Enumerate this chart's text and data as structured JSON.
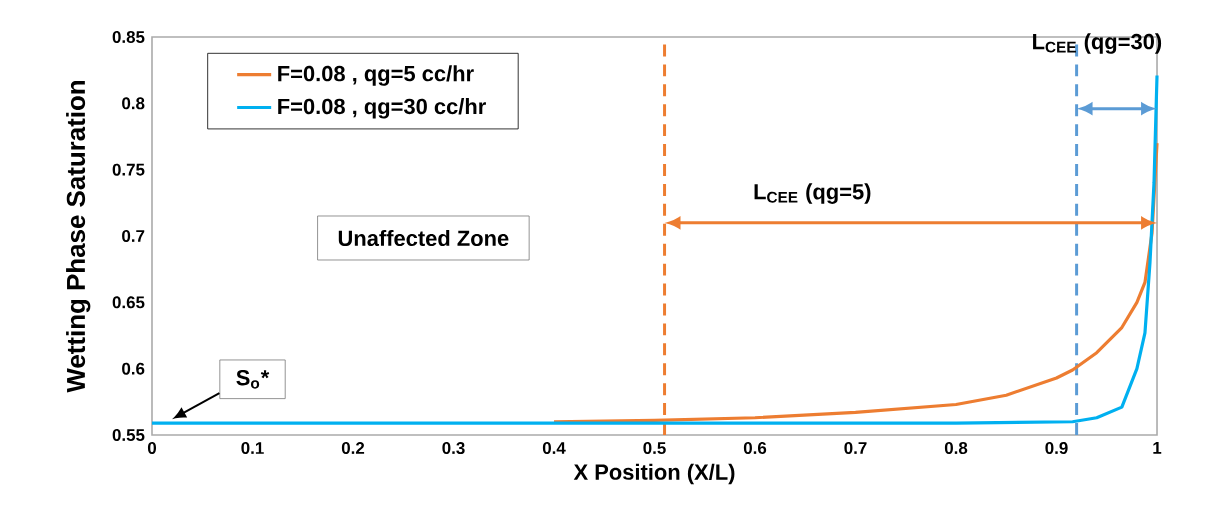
{
  "chart_data": {
    "type": "line",
    "xlabel": "X Position (X/L)",
    "ylabel": "Wetting Phase Saturation",
    "xlim": [
      0,
      1
    ],
    "ylim": [
      0.55,
      0.85
    ],
    "xticks": [
      0,
      0.1,
      0.2,
      0.3,
      0.4,
      0.5,
      0.6,
      0.7,
      0.8,
      0.9,
      1
    ],
    "yticks": [
      0.55,
      0.6,
      0.65,
      0.7,
      0.75,
      0.8,
      0.85
    ],
    "series": [
      {
        "name": "F=0.08 , qg=5 cc/hr",
        "color": "#ed7d31",
        "x": [
          0.4,
          0.5,
          0.6,
          0.7,
          0.8,
          0.85,
          0.9,
          0.916,
          0.94,
          0.965,
          0.98,
          0.988,
          0.995,
          1
        ],
        "values": [
          0.56,
          0.561,
          0.563,
          0.567,
          0.573,
          0.58,
          0.593,
          0.599,
          0.612,
          0.631,
          0.65,
          0.665,
          0.702,
          0.77
        ]
      },
      {
        "name": "F=0.08 , qg=30 cc/hr",
        "color": "#00b0f0",
        "x": [
          0,
          0.2,
          0.4,
          0.6,
          0.8,
          0.916,
          0.94,
          0.965,
          0.98,
          0.988,
          0.993,
          0.997,
          1
        ],
        "values": [
          0.559,
          0.559,
          0.559,
          0.559,
          0.559,
          0.56,
          0.563,
          0.571,
          0.6,
          0.627,
          0.68,
          0.74,
          0.821
        ]
      }
    ],
    "ref_lines": [
      {
        "axis": "x",
        "value": 0.51,
        "color": "#ed7d31",
        "line_style": "dashed"
      },
      {
        "axis": "x",
        "value": 0.92,
        "color": "#5b9bd5",
        "line_style": "dashed"
      }
    ],
    "annotations": [
      "Unaffected Zone",
      "S$_{o}$*",
      "L$_{CEE}$ (qg=5)",
      "L$_{CEE}$ (qg=30)"
    ],
    "legend": "top left",
    "grid": false,
    "marker": "none",
    "line_style": "solid"
  }
}
